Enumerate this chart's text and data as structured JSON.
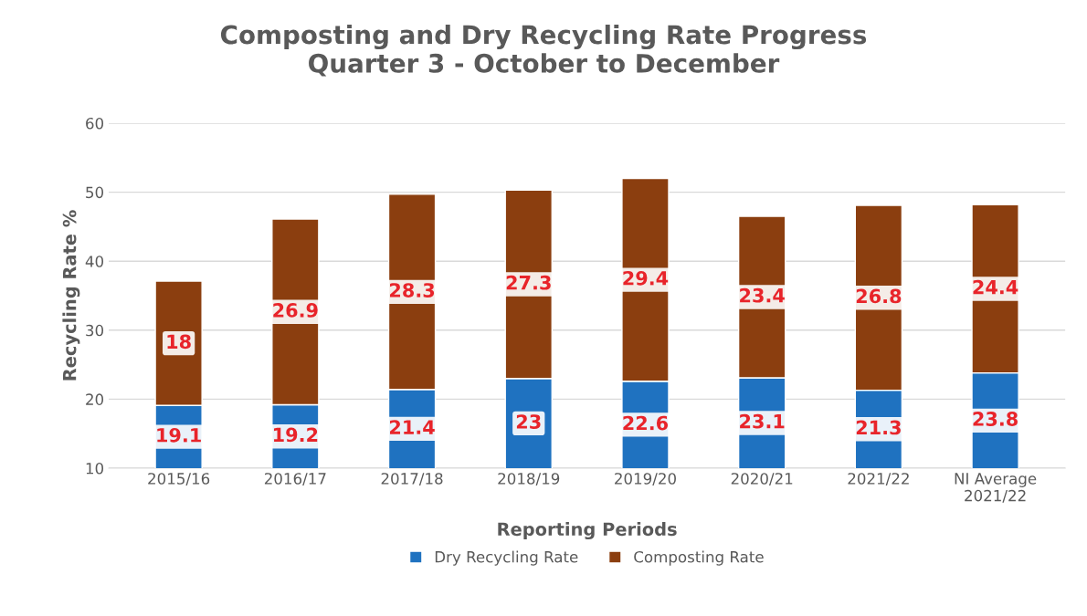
{
  "chart_data": {
    "type": "bar",
    "title": "Composting and Dry Recycling Rate Progress\nQuarter 3 - October to December",
    "xlabel": "Reporting Periods",
    "ylabel": "Recycling Rate %",
    "categories": [
      "2015/16",
      "2016/17",
      "2017/18",
      "2018/19",
      "2019/20",
      "2020/21",
      "2021/22",
      "NI Average\n2021/22"
    ],
    "stacked": true,
    "series": [
      {
        "name": "Dry Recycling Rate",
        "color": "#1f72c0",
        "values": [
          19.1,
          19.2,
          21.4,
          23,
          22.6,
          23.1,
          21.3,
          23.8
        ]
      },
      {
        "name": "Composting Rate",
        "color": "#8b3e0f",
        "values": [
          18,
          26.9,
          28.3,
          27.3,
          29.4,
          23.4,
          26.8,
          24.4
        ]
      }
    ],
    "ylim": [
      10,
      60
    ],
    "yticks": [
      10,
      20,
      30,
      40,
      50,
      60
    ],
    "grid": "y",
    "legend": "bottom",
    "data_labels": true
  }
}
